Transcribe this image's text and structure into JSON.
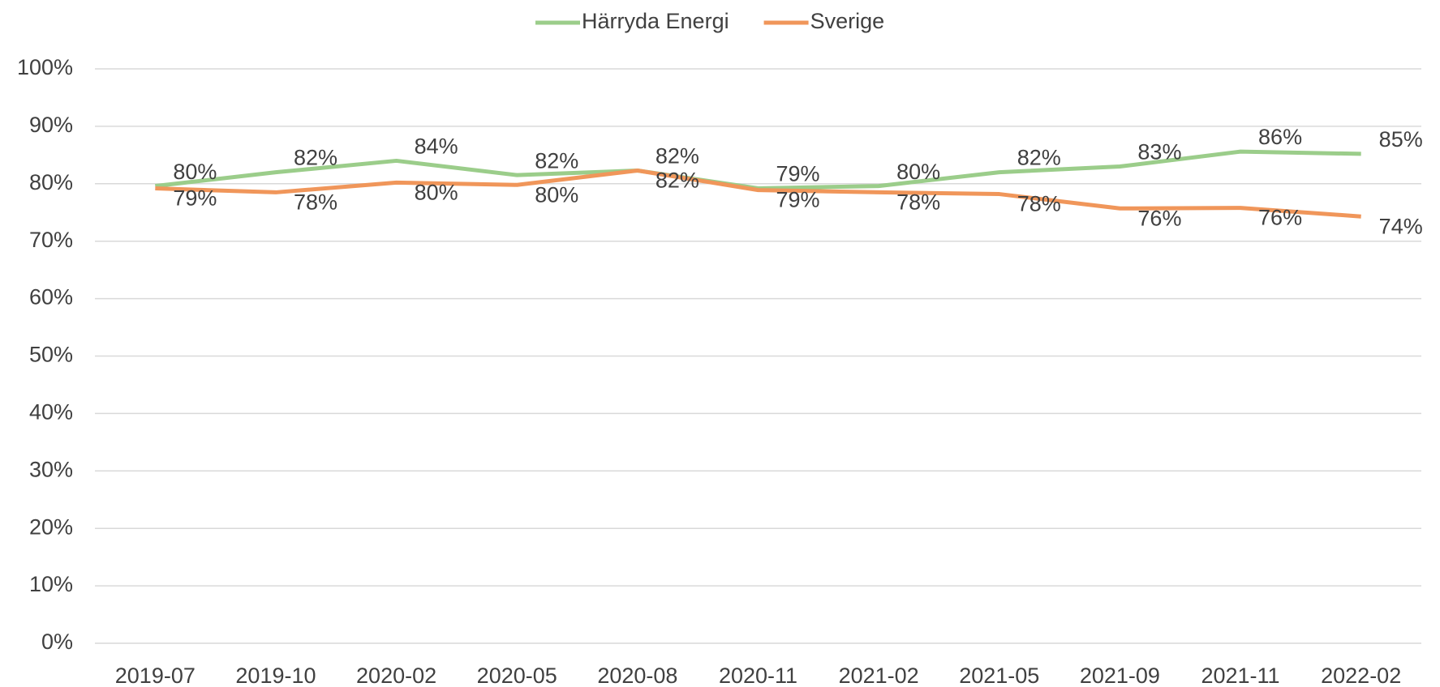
{
  "chart_data": {
    "type": "line",
    "categories": [
      "2019-07",
      "2019-10",
      "2020-02",
      "2020-05",
      "2020-08",
      "2020-11",
      "2021-02",
      "2021-05",
      "2021-09",
      "2021-11",
      "2022-02"
    ],
    "series": [
      {
        "name": "Härryda Energi",
        "color": "#9bcd8a",
        "values": [
          79.6,
          82,
          84,
          81.5,
          82.3,
          79.2,
          79.6,
          82,
          83,
          85.6,
          85.2
        ],
        "value_labels": [
          "80%",
          "82%",
          "84%",
          "82%",
          "82%",
          "79%",
          "80%",
          "82%",
          "83%",
          "86%",
          "85%"
        ]
      },
      {
        "name": "Sverige",
        "color": "#f0965a",
        "values": [
          79.2,
          78.5,
          80.2,
          79.8,
          82.3,
          78.9,
          78.5,
          78.2,
          75.7,
          75.8,
          74.3
        ],
        "value_labels": [
          "79%",
          "78%",
          "80%",
          "80%",
          "82%",
          "79%",
          "78%",
          "78%",
          "76%",
          "76%",
          "74%"
        ]
      }
    ],
    "ylim": [
      0,
      100
    ],
    "yticks": [
      {
        "value": 0,
        "label": "0%"
      },
      {
        "value": 10,
        "label": "10%"
      },
      {
        "value": 20,
        "label": "20%"
      },
      {
        "value": 30,
        "label": "30%"
      },
      {
        "value": 40,
        "label": "40%"
      },
      {
        "value": 50,
        "label": "50%"
      },
      {
        "value": 60,
        "label": "60%"
      },
      {
        "value": 70,
        "label": "70%"
      },
      {
        "value": 80,
        "label": "80%"
      },
      {
        "value": 90,
        "label": "90%"
      },
      {
        "value": 100,
        "label": "100%"
      }
    ],
    "grid": true,
    "legend": "top"
  }
}
